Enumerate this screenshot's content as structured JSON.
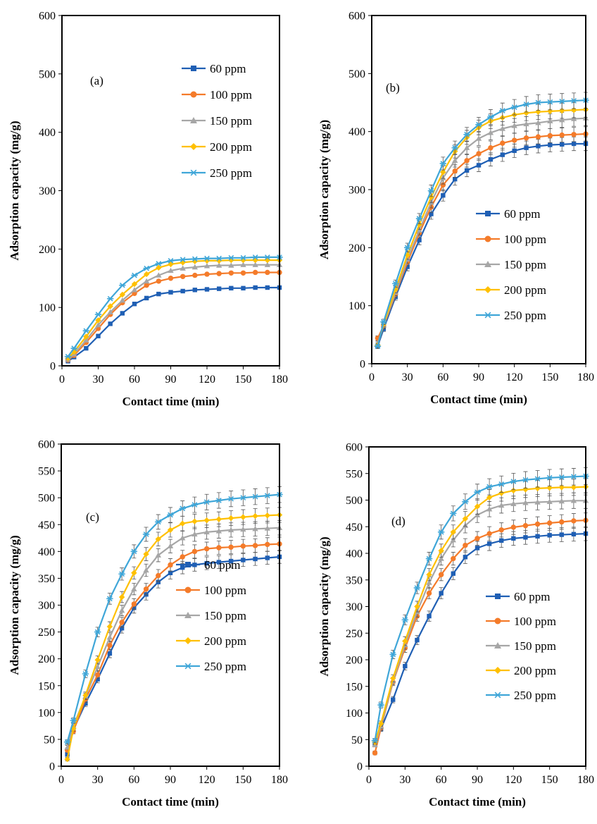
{
  "chart_data": [
    {
      "type": "line",
      "panel_label": "(a)",
      "xlabel": "Contact time (min)",
      "ylabel": "Adsorption capacity (mg/g)",
      "xlim": [
        0,
        180
      ],
      "ylim": [
        0,
        600
      ],
      "xticks": [
        0,
        30,
        60,
        90,
        120,
        150,
        180
      ],
      "yticks": [
        0,
        100,
        200,
        300,
        400,
        500,
        600
      ],
      "legend_position": "top-right",
      "error_bars": false,
      "x": [
        5,
        10,
        20,
        30,
        40,
        50,
        60,
        70,
        80,
        90,
        100,
        110,
        120,
        130,
        140,
        150,
        160,
        170,
        180
      ],
      "series": [
        {
          "name": "60 ppm",
          "color": "#1f5fb4",
          "marker": "square",
          "values": [
            8,
            15,
            30,
            51,
            72,
            90,
            106,
            116,
            123,
            126,
            128,
            130,
            131,
            132,
            133,
            133,
            134,
            134,
            134
          ]
        },
        {
          "name": "100 ppm",
          "color": "#f47b2a",
          "marker": "circle",
          "values": [
            10,
            18,
            40,
            64,
            88,
            108,
            124,
            138,
            145,
            150,
            153,
            155,
            157,
            158,
            159,
            159,
            160,
            160,
            160
          ]
        },
        {
          "name": "150 ppm",
          "color": "#a6a6a6",
          "marker": "triangle",
          "values": [
            11,
            20,
            44,
            70,
            92,
            112,
            130,
            145,
            155,
            163,
            167,
            169,
            171,
            172,
            172,
            173,
            173,
            173,
            173
          ]
        },
        {
          "name": "200 ppm",
          "color": "#ffc000",
          "marker": "diamond",
          "values": [
            13,
            24,
            50,
            78,
            102,
            122,
            140,
            157,
            168,
            174,
            177,
            179,
            180,
            180,
            181,
            181,
            181,
            181,
            181
          ]
        },
        {
          "name": "250 ppm",
          "color": "#3fa6d8",
          "marker": "star",
          "values": [
            16,
            30,
            60,
            88,
            115,
            138,
            155,
            167,
            175,
            180,
            182,
            183,
            184,
            184,
            185,
            185,
            186,
            186,
            186
          ]
        }
      ]
    },
    {
      "type": "line",
      "panel_label": "(b)",
      "xlabel": "Contact time (min)",
      "ylabel": "Adsorption capacity (mg/g)",
      "xlim": [
        0,
        180
      ],
      "ylim": [
        0,
        600
      ],
      "xticks": [
        0,
        30,
        60,
        90,
        120,
        150,
        180
      ],
      "yticks": [
        0,
        100,
        200,
        300,
        400,
        500,
        600
      ],
      "legend_position": "center-right",
      "error_bars": true,
      "x": [
        5,
        10,
        20,
        30,
        40,
        50,
        60,
        70,
        80,
        90,
        100,
        110,
        120,
        130,
        140,
        150,
        160,
        170,
        180
      ],
      "series": [
        {
          "name": "60 ppm",
          "color": "#1f5fb4",
          "marker": "square",
          "values": [
            30,
            60,
            115,
            167,
            213,
            258,
            290,
            318,
            333,
            342,
            352,
            360,
            367,
            372,
            375,
            377,
            378,
            379,
            379
          ]
        },
        {
          "name": "100 ppm",
          "color": "#f47b2a",
          "marker": "circle",
          "values": [
            44,
            65,
            120,
            175,
            225,
            270,
            308,
            332,
            350,
            362,
            372,
            380,
            385,
            389,
            391,
            393,
            394,
            395,
            396
          ]
        },
        {
          "name": "150 ppm",
          "color": "#a6a6a6",
          "marker": "triangle",
          "values": [
            35,
            66,
            123,
            180,
            230,
            278,
            320,
            350,
            372,
            388,
            398,
            405,
            410,
            413,
            415,
            418,
            420,
            422,
            423
          ]
        },
        {
          "name": "200 ppm",
          "color": "#ffc000",
          "marker": "diamond",
          "values": [
            32,
            68,
            128,
            187,
            240,
            287,
            330,
            366,
            390,
            407,
            418,
            424,
            429,
            432,
            434,
            435,
            436,
            437,
            438
          ]
        },
        {
          "name": "250 ppm",
          "color": "#3fa6d8",
          "marker": "star",
          "values": [
            30,
            72,
            138,
            200,
            250,
            298,
            345,
            372,
            395,
            412,
            425,
            436,
            442,
            447,
            450,
            451,
            452,
            453,
            454
          ]
        }
      ]
    },
    {
      "type": "line",
      "panel_label": "(c)",
      "xlabel": "Contact time (min)",
      "ylabel": "Adsorption  capacity  (mg/g)",
      "xlim": [
        0,
        180
      ],
      "ylim": [
        0,
        600
      ],
      "xticks": [
        0,
        30,
        60,
        90,
        120,
        150,
        180
      ],
      "yticks": [
        0,
        50,
        100,
        150,
        200,
        250,
        300,
        350,
        400,
        450,
        500,
        550,
        600
      ],
      "legend_position": "center-right",
      "error_bars": true,
      "x": [
        5,
        10,
        20,
        30,
        40,
        50,
        60,
        70,
        80,
        90,
        100,
        110,
        120,
        130,
        140,
        150,
        160,
        170,
        180
      ],
      "series": [
        {
          "name": "60 ppm",
          "color": "#1f5fb4",
          "marker": "square",
          "values": [
            22,
            68,
            117,
            162,
            210,
            257,
            295,
            320,
            343,
            360,
            370,
            375,
            378,
            380,
            382,
            384,
            386,
            388,
            390
          ]
        },
        {
          "name": "100 ppm",
          "color": "#f47b2a",
          "marker": "circle",
          "values": [
            30,
            65,
            125,
            170,
            225,
            268,
            302,
            330,
            355,
            375,
            390,
            400,
            405,
            407,
            408,
            410,
            411,
            413,
            414
          ]
        },
        {
          "name": "150 ppm",
          "color": "#a6a6a6",
          "marker": "triangle",
          "values": [
            35,
            75,
            130,
            185,
            240,
            290,
            330,
            365,
            393,
            410,
            425,
            432,
            436,
            438,
            440,
            441,
            442,
            443,
            444
          ]
        },
        {
          "name": "200 ppm",
          "color": "#ffc000",
          "marker": "diamond",
          "values": [
            13,
            70,
            132,
            198,
            260,
            315,
            360,
            395,
            423,
            440,
            452,
            456,
            458,
            460,
            462,
            464,
            466,
            467,
            468
          ]
        },
        {
          "name": "250 ppm",
          "color": "#3fa6d8",
          "marker": "star",
          "values": [
            45,
            85,
            172,
            250,
            312,
            358,
            400,
            432,
            455,
            468,
            480,
            487,
            492,
            495,
            498,
            500,
            502,
            504,
            506
          ]
        }
      ]
    },
    {
      "type": "line",
      "panel_label": "(d)",
      "xlabel": "Contact time (min)",
      "ylabel": "Adsorption capacity (mg/g)",
      "xlim": [
        0,
        180
      ],
      "ylim": [
        0,
        600
      ],
      "xticks": [
        0,
        30,
        60,
        90,
        120,
        150,
        180
      ],
      "yticks": [
        0,
        50,
        100,
        150,
        200,
        250,
        300,
        350,
        400,
        450,
        500,
        550,
        600
      ],
      "legend_position": "center-right",
      "error_bars": true,
      "x": [
        5,
        10,
        20,
        30,
        40,
        50,
        60,
        70,
        80,
        90,
        100,
        110,
        120,
        130,
        140,
        150,
        160,
        170,
        180
      ],
      "series": [
        {
          "name": "60 ppm",
          "color": "#1f5fb4",
          "marker": "square",
          "values": [
            42,
            70,
            125,
            188,
            237,
            282,
            325,
            362,
            393,
            410,
            418,
            424,
            428,
            430,
            432,
            434,
            435,
            436,
            437
          ]
        },
        {
          "name": "100 ppm",
          "color": "#f47b2a",
          "marker": "circle",
          "values": [
            25,
            72,
            158,
            222,
            282,
            325,
            360,
            390,
            415,
            428,
            437,
            444,
            449,
            452,
            455,
            457,
            459,
            461,
            462
          ]
        },
        {
          "name": "150 ppm",
          "color": "#a6a6a6",
          "marker": "triangle",
          "values": [
            40,
            75,
            160,
            228,
            290,
            345,
            390,
            425,
            452,
            472,
            483,
            490,
            493,
            495,
            496,
            497,
            498,
            499,
            499
          ]
        },
        {
          "name": "200 ppm",
          "color": "#ffc000",
          "marker": "diamond",
          "values": [
            45,
            80,
            165,
            235,
            300,
            360,
            405,
            440,
            465,
            488,
            505,
            513,
            518,
            520,
            522,
            523,
            524,
            524,
            525
          ]
        },
        {
          "name": "250 ppm",
          "color": "#3fa6d8",
          "marker": "star",
          "values": [
            48,
            115,
            210,
            275,
            335,
            390,
            440,
            475,
            497,
            515,
            525,
            530,
            535,
            538,
            540,
            542,
            543,
            544,
            545
          ]
        }
      ]
    }
  ]
}
